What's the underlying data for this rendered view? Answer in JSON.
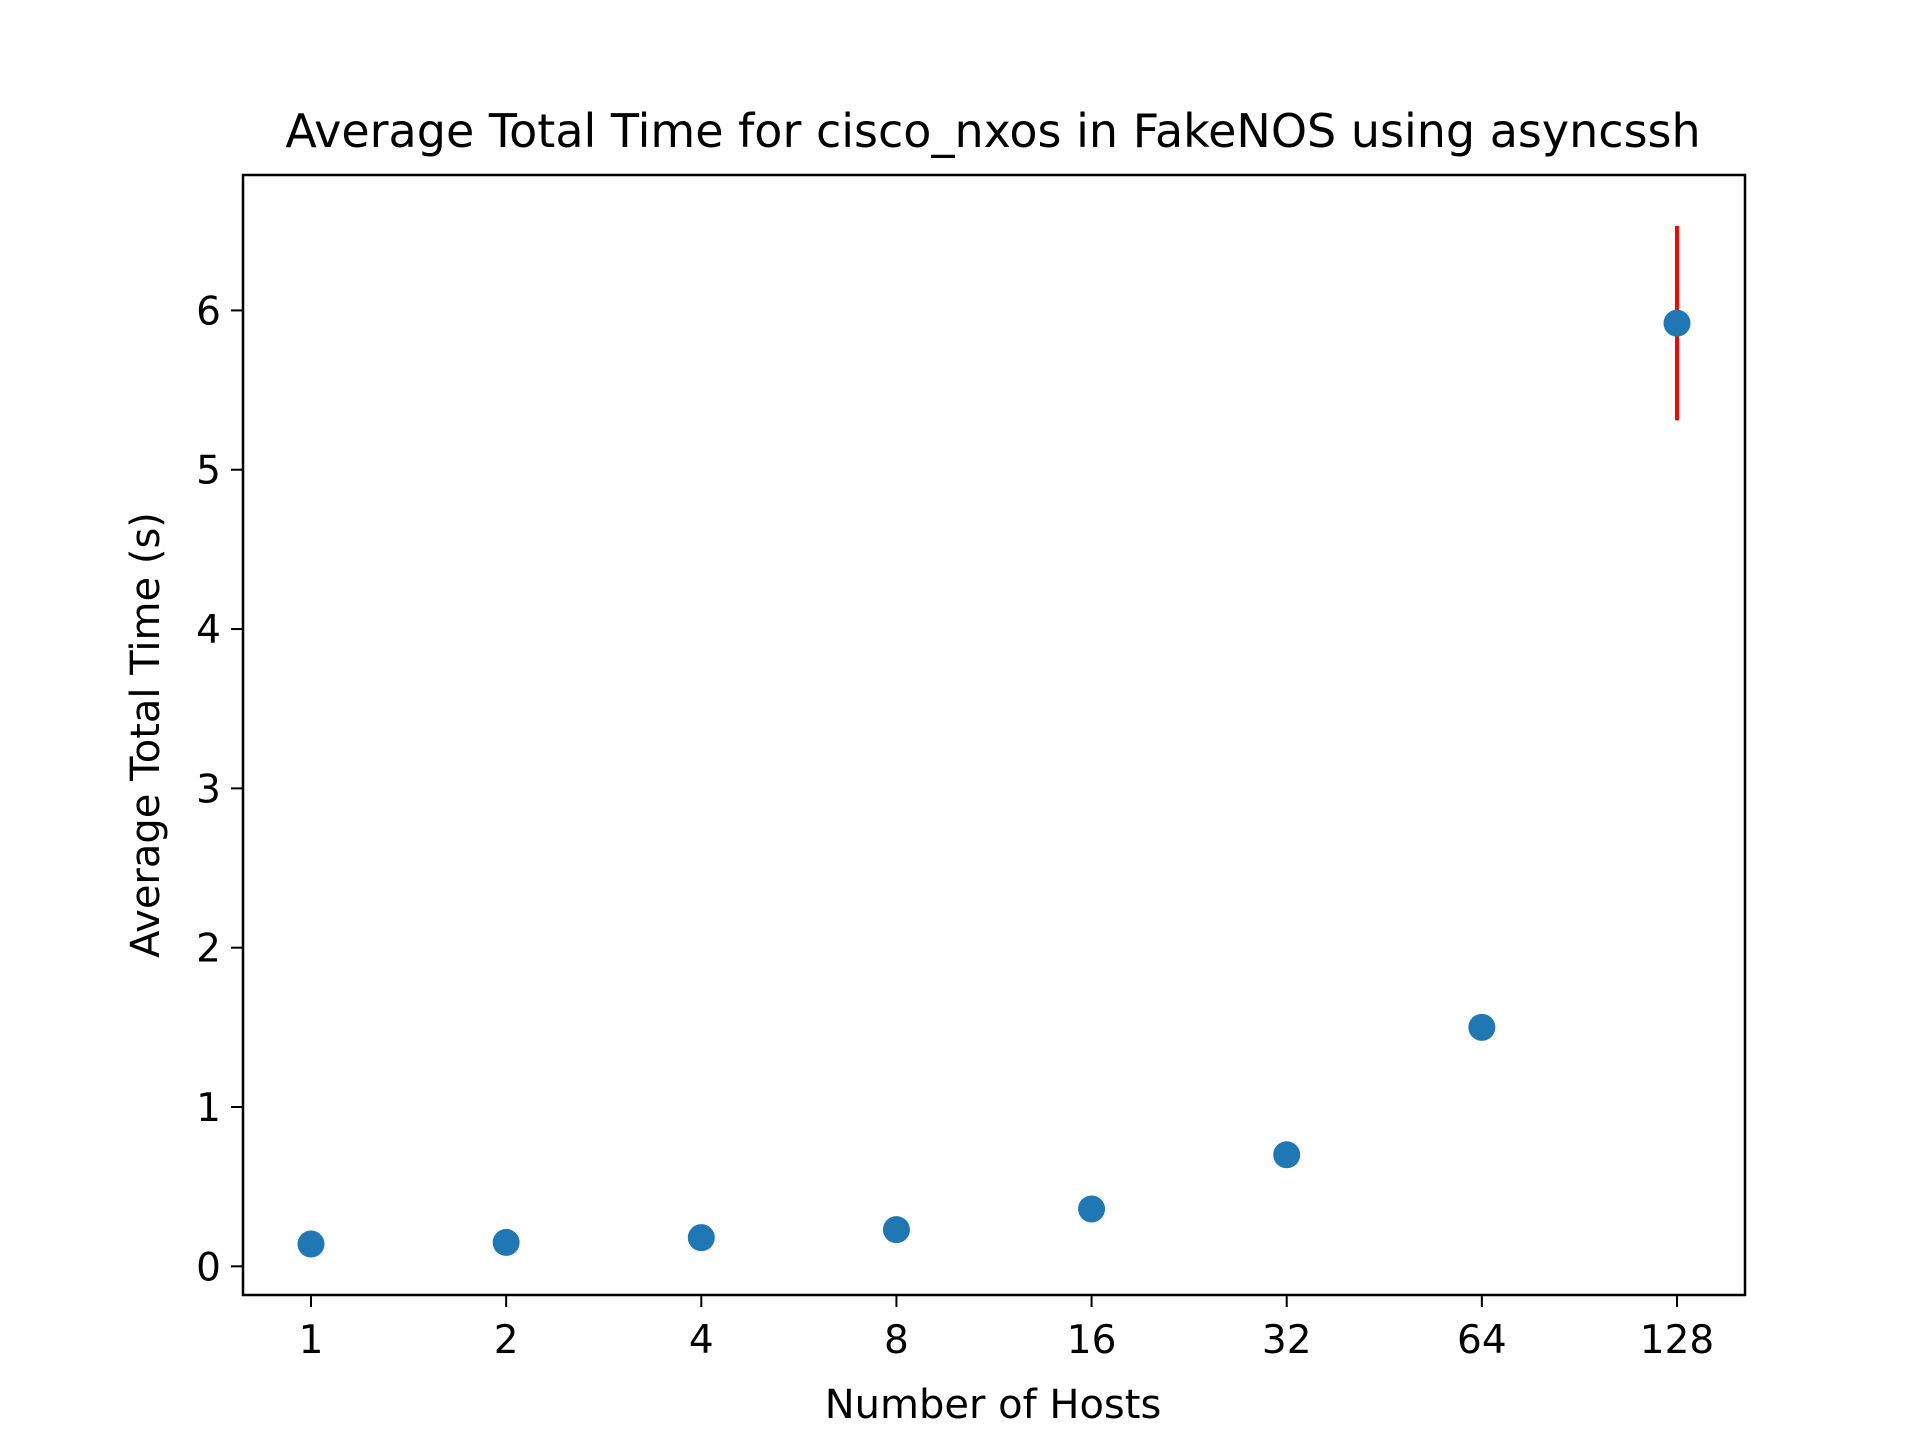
{
  "chart_data": {
    "type": "scatter",
    "title": "Average Total Time for cisco_nxos in FakeNOS using asyncssh",
    "xlabel": "Number of Hosts",
    "ylabel": "Average Total Time (s)",
    "categories": [
      "1",
      "2",
      "4",
      "8",
      "16",
      "32",
      "64",
      "128"
    ],
    "yticks": [
      "0",
      "1",
      "2",
      "3",
      "4",
      "5",
      "6"
    ],
    "ylim": [
      -0.18,
      6.85
    ],
    "grid": false,
    "series": [
      {
        "color": "#1f77b4",
        "values": [
          0.14,
          0.15,
          0.18,
          0.23,
          0.36,
          0.7,
          1.5,
          5.92
        ]
      }
    ],
    "error_bars": [
      {
        "category": "128",
        "low": 5.31,
        "high": 6.53,
        "color": "#ff0000"
      }
    ]
  }
}
